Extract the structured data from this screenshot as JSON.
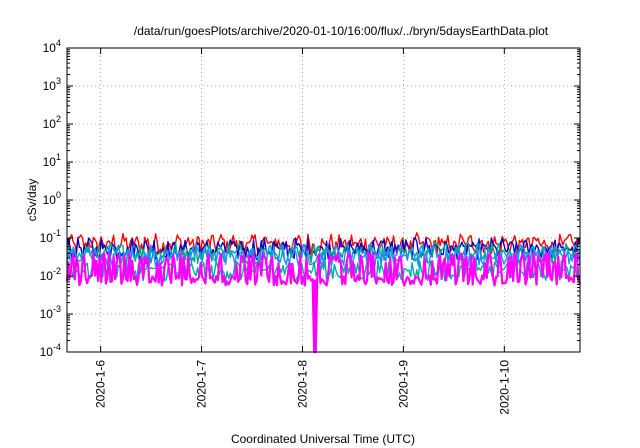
{
  "chart_data": {
    "type": "line",
    "title": "/data/run/goesPlots/archive/2020-01-10/16:00/flux/../bryn/5daysEarthData.plot",
    "xlabel": "Coordinated Universal Time (UTC)",
    "ylabel": "cSv/day",
    "y_scale": "log",
    "ylim": [
      0.0001,
      10000
    ],
    "y_ticks": [
      {
        "value": 0.0001,
        "base": "10",
        "exp": "-4"
      },
      {
        "value": 0.001,
        "base": "10",
        "exp": "-3"
      },
      {
        "value": 0.01,
        "base": "10",
        "exp": "-2"
      },
      {
        "value": 0.1,
        "base": "10",
        "exp": "-1"
      },
      {
        "value": 1,
        "base": "10",
        "exp": "0"
      },
      {
        "value": 10,
        "base": "10",
        "exp": "1"
      },
      {
        "value": 100,
        "base": "10",
        "exp": "2"
      },
      {
        "value": 1000,
        "base": "10",
        "exp": "3"
      },
      {
        "value": 10000,
        "base": "10",
        "exp": "4"
      }
    ],
    "xlim": [
      "2020-01-05 16:00",
      "2020-01-10 18:00"
    ],
    "x_ticks": [
      "2020-1-6",
      "2020-1-7",
      "2020-1-8",
      "2020-1-9",
      "2020-1-10"
    ],
    "grid": true,
    "legend": "none",
    "series": [
      {
        "color": "#ff0000",
        "approx_level": 0.06
      },
      {
        "color": "#0000cc",
        "approx_level": 0.045
      },
      {
        "color": "#00aa88",
        "approx_level": 0.035
      },
      {
        "color": "#1e90ff",
        "approx_level": 0.03
      },
      {
        "color": "#00aaaa",
        "approx_level": 0.012
      },
      {
        "color": "#ff00ff",
        "approx_level": 0.008
      }
    ],
    "dropout": {
      "date": "2020-01-08 03:00",
      "min_value": 0.0001,
      "color": "#ff00ff"
    }
  }
}
